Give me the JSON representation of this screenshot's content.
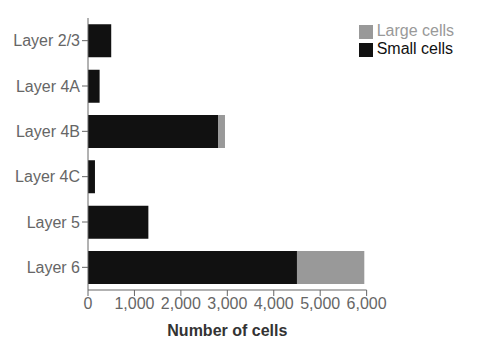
{
  "chart_data": {
    "type": "bar",
    "orientation": "horizontal",
    "stacked": true,
    "categories": [
      "Layer 2/3",
      "Layer 4A",
      "Layer 4B",
      "Layer 4C",
      "Layer 5",
      "Layer 6"
    ],
    "series": [
      {
        "name": "Small cells",
        "color": "#111111",
        "values": [
          500,
          250,
          2800,
          150,
          1300,
          4500
        ]
      },
      {
        "name": "Large cells",
        "color": "#999999",
        "values": [
          0,
          0,
          150,
          0,
          0,
          1450
        ]
      }
    ],
    "xlabel": "Number of cells",
    "xlim": [
      0,
      6000
    ],
    "xticks": [
      0,
      {
        "value": 1000,
        "label": "1,000"
      },
      {
        "value": 2000,
        "label": "2,000"
      },
      {
        "value": 3000,
        "label": "3,000"
      },
      {
        "value": 4000,
        "label": "4,000"
      },
      {
        "value": 5000,
        "label": "5,000"
      },
      {
        "value": 6000,
        "label": "6,000"
      }
    ],
    "legend": "upper right"
  }
}
